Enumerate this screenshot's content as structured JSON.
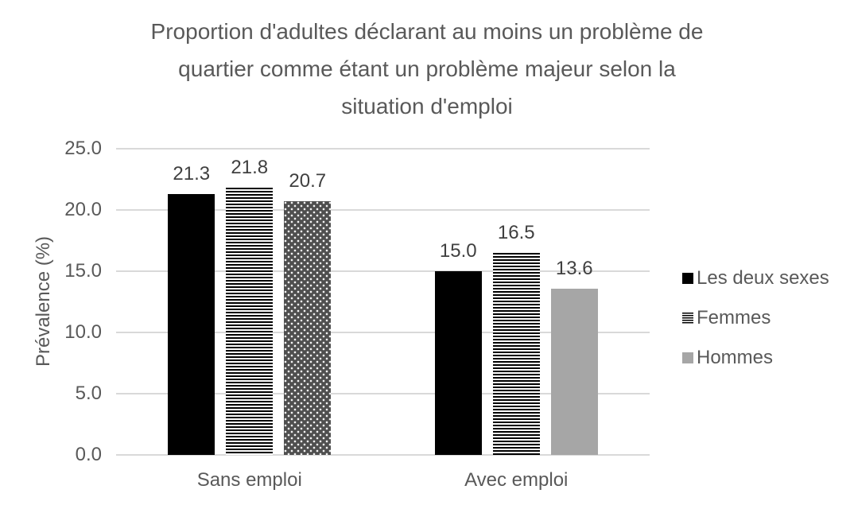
{
  "title": {
    "lines": [
      "Proportion d'adultes déclarant au moins un problème de",
      "quartier comme étant un problème majeur selon la",
      "situation d'emploi"
    ]
  },
  "chart_data": {
    "type": "bar",
    "title": "Proportion d'adultes déclarant au moins un problème de quartier comme étant un problème majeur selon la situation d'emploi",
    "categories": [
      "Sans emploi",
      "Avec emploi"
    ],
    "series": [
      {
        "name": "Les deux sexes",
        "values": [
          21.3,
          15.0
        ],
        "patterns": [
          "solid-black",
          "solid-black"
        ]
      },
      {
        "name": "Femmes",
        "values": [
          21.8,
          16.5
        ],
        "patterns": [
          "hstripes",
          "hstripes"
        ]
      },
      {
        "name": "Hommes",
        "values": [
          20.7,
          13.6
        ],
        "patterns": [
          "dots-dark",
          "solid-gray"
        ]
      }
    ],
    "data_labels": [
      [
        "21.3",
        "15.0"
      ],
      [
        "21.8",
        "16.5"
      ],
      [
        "20.7",
        "13.6"
      ]
    ],
    "xlabel": "",
    "ylabel": "Prévalence (%)",
    "ylim": [
      0,
      25
    ],
    "yticks": [
      0,
      5,
      10,
      15,
      20,
      25
    ],
    "ytick_labels": [
      "0.0",
      "5.0",
      "10.0",
      "15.0",
      "20.0",
      "25.0"
    ],
    "grid": true,
    "legend_position": "right",
    "colors": {
      "solid_black": "#000000",
      "solid_gray": "#a6a6a6",
      "dots_dark_bg": "#4f4f4f",
      "title_text": "#595959",
      "data_label_text": "#404040",
      "gridline": "#d9d9d9"
    }
  }
}
